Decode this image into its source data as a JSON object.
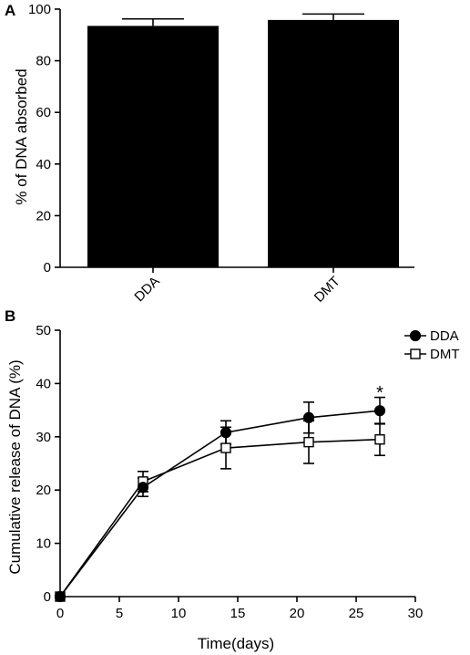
{
  "chart_data": [
    {
      "panel": "A",
      "type": "bar",
      "categories": [
        "DDA",
        "DMT"
      ],
      "values": [
        93.5,
        95.8
      ],
      "errors": [
        2.7,
        2.3
      ],
      "ylabel": "% of DNA absorbed",
      "ylim": [
        0,
        100
      ],
      "yticks": [
        0,
        20,
        40,
        60,
        80,
        100
      ],
      "bar_color": "#000000"
    },
    {
      "panel": "B",
      "type": "line",
      "xlabel": "Time(days)",
      "ylabel": "Cumulative release of DNA (%)",
      "xlim": [
        0,
        30
      ],
      "ylim": [
        0,
        50
      ],
      "xticks": [
        0,
        5,
        10,
        15,
        20,
        25,
        30
      ],
      "yticks": [
        0,
        10,
        20,
        30,
        40,
        50
      ],
      "legend_position": "top-right",
      "series": [
        {
          "name": "DDA",
          "marker": "filled-circle",
          "x": [
            0,
            7,
            14,
            21,
            27
          ],
          "y": [
            0,
            20.5,
            30.8,
            33.6,
            34.9
          ],
          "error": [
            0,
            1.7,
            2.2,
            2.9,
            2.5
          ]
        },
        {
          "name": "DMT",
          "marker": "open-square",
          "x": [
            0,
            7,
            14,
            21,
            27
          ],
          "y": [
            0,
            21.6,
            27.9,
            29.0,
            29.5
          ],
          "error": [
            0,
            1.9,
            3.9,
            4.0,
            3.0
          ]
        }
      ],
      "annotations": [
        {
          "text": "*",
          "x": 27,
          "y": 38.2
        }
      ]
    }
  ]
}
